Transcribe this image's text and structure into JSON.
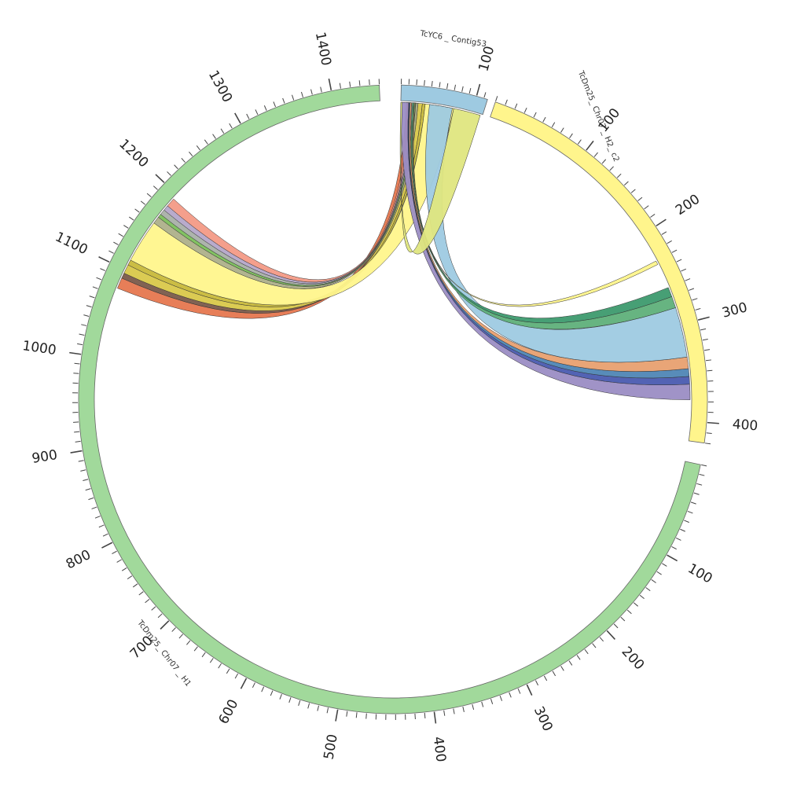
{
  "segments": [
    {
      "id": "H1",
      "name": "TcDm25_ Chr07 _ H1",
      "length": 1450,
      "color": "#a1d99b",
      "major_ticks": [
        100,
        200,
        300,
        400,
        500,
        600,
        700,
        800,
        900,
        1000,
        1100,
        1200,
        1300,
        1400
      ]
    },
    {
      "id": "H2",
      "name": "TcDm25_ Chr07 _ H2_ c2",
      "length": 420,
      "color": "#fff58c",
      "major_ticks": [
        100,
        200,
        300,
        400
      ]
    },
    {
      "id": "C53",
      "name": "TcYC6 _ Contig53",
      "length": 115,
      "color": "#9ecae1",
      "major_ticks": [
        100
      ]
    }
  ],
  "links": [
    {
      "from": {
        "seg": "C53",
        "start": 8,
        "end": 18
      },
      "to": {
        "seg": "H1",
        "start": 1078,
        "end": 1090
      },
      "color": "#e6774f"
    },
    {
      "from": {
        "seg": "C53",
        "start": 18,
        "end": 24
      },
      "to": {
        "seg": "H1",
        "start": 1090,
        "end": 1096
      },
      "color": "#7a5a4a"
    },
    {
      "from": {
        "seg": "C53",
        "start": 24,
        "end": 30
      },
      "to": {
        "seg": "H1",
        "start": 1096,
        "end": 1106
      },
      "color": "#d9c84a"
    },
    {
      "from": {
        "seg": "C53",
        "start": 30,
        "end": 34
      },
      "to": {
        "seg": "H1",
        "start": 1106,
        "end": 1112
      },
      "color": "#c8b93a"
    },
    {
      "from": {
        "seg": "C53",
        "start": 34,
        "end": 74
      },
      "to": {
        "seg": "H1",
        "start": 1112,
        "end": 1160
      },
      "color": "#fff58c"
    },
    {
      "from": {
        "seg": "C53",
        "start": 20,
        "end": 24
      },
      "to": {
        "seg": "H1",
        "start": 1160,
        "end": 1168
      },
      "color": "#aeb08a"
    },
    {
      "from": {
        "seg": "C53",
        "start": 19,
        "end": 21
      },
      "to": {
        "seg": "H1",
        "start": 1168,
        "end": 1172
      },
      "color": "#7bbf5a"
    },
    {
      "from": {
        "seg": "C53",
        "start": 17,
        "end": 19
      },
      "to": {
        "seg": "H1",
        "start": 1172,
        "end": 1178
      },
      "color": "#a9b0a8"
    },
    {
      "from": {
        "seg": "C53",
        "start": 15,
        "end": 17
      },
      "to": {
        "seg": "H1",
        "start": 1178,
        "end": 1184
      },
      "color": "#b4a7c9"
    },
    {
      "from": {
        "seg": "C53",
        "start": 12,
        "end": 15
      },
      "to": {
        "seg": "H1",
        "start": 1184,
        "end": 1194
      },
      "color": "#f39a86"
    },
    {
      "from": {
        "seg": "C53",
        "start": 1,
        "end": 11
      },
      "to": {
        "seg": "H2",
        "start": 362,
        "end": 378
      },
      "color": "#9b8dc4"
    },
    {
      "from": {
        "seg": "C53",
        "start": 11,
        "end": 12
      },
      "to": {
        "seg": "H2",
        "start": 354,
        "end": 362
      },
      "color": "#4a5bb0"
    },
    {
      "from": {
        "seg": "C53",
        "start": 12,
        "end": 13
      },
      "to": {
        "seg": "H2",
        "start": 346,
        "end": 354
      },
      "color": "#4f86b5"
    },
    {
      "from": {
        "seg": "C53",
        "start": 13,
        "end": 15
      },
      "to": {
        "seg": "H2",
        "start": 334,
        "end": 346
      },
      "color": "#e8a070"
    },
    {
      "from": {
        "seg": "C53",
        "start": 40,
        "end": 72
      },
      "to": {
        "seg": "H2",
        "start": 282,
        "end": 334
      },
      "color": "#9ecae1"
    },
    {
      "from": {
        "seg": "C53",
        "start": 16,
        "end": 18
      },
      "to": {
        "seg": "H2",
        "start": 270,
        "end": 282
      },
      "color": "#5fb07a"
    },
    {
      "from": {
        "seg": "C53",
        "start": 18,
        "end": 19
      },
      "to": {
        "seg": "H2",
        "start": 260,
        "end": 270
      },
      "color": "#3d9a6e"
    },
    {
      "from": {
        "seg": "C53",
        "start": 19,
        "end": 20
      },
      "to": {
        "seg": "H2",
        "start": 230,
        "end": 234
      },
      "color": "#fff58c"
    },
    {
      "from": {
        "seg": "C53",
        "start": 74,
        "end": 112
      },
      "to": {
        "seg": "C53",
        "start": 0,
        "end": 2
      },
      "color": "#dfe67f"
    }
  ]
}
